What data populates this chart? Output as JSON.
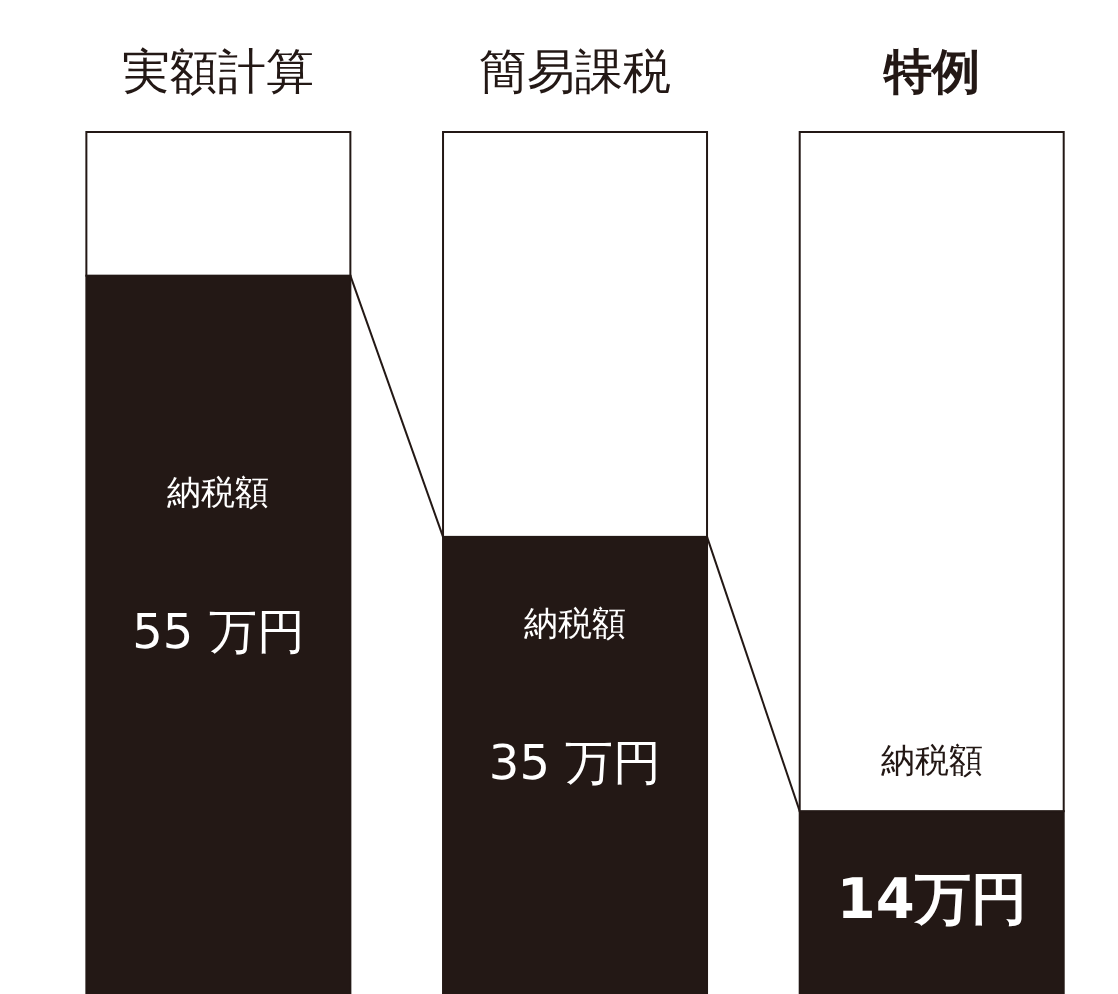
{
  "chart_data": {
    "type": "bar",
    "stacked": true,
    "categories": [
      "実額計算",
      "簡易課税",
      "特例"
    ],
    "series": [
      {
        "color": "#231815",
        "values": [
          55,
          35,
          14
        ],
        "value_labels": [
          "55 万円",
          "35 万円",
          "14万円"
        ]
      },
      {
        "color": "#ffffff",
        "values": [
          11,
          31,
          52
        ]
      }
    ],
    "annotations": [
      "納税額",
      "納税額",
      "納税額"
    ]
  }
}
